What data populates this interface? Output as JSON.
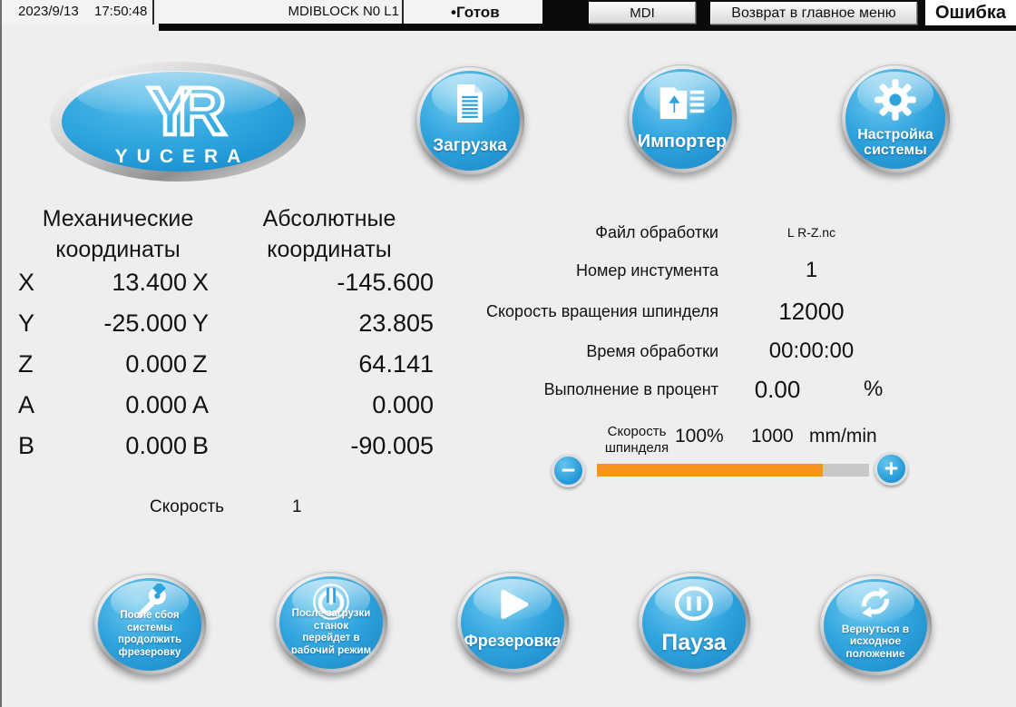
{
  "topbar": {
    "date": "2023/9/13",
    "time": "17:50:48",
    "program_block": "MDIBLOCK N0 L1",
    "status": "•Готов",
    "mode_button": "MDI",
    "return_button": "Возврат в главное меню",
    "error_label": "Ошибка"
  },
  "logo": {
    "brand": "YUCERA",
    "monogram": "YR"
  },
  "top_buttons": {
    "load": {
      "label": "Загрузка"
    },
    "import": {
      "label": "Импортер"
    },
    "settings": {
      "line1": "Настройка",
      "line2": "системы"
    }
  },
  "coordinates": {
    "mechanical": {
      "title1": "Механические",
      "title2": "координаты",
      "rows": [
        {
          "axis": "X",
          "value": "13.400"
        },
        {
          "axis": "Y",
          "value": "-25.000"
        },
        {
          "axis": "Z",
          "value": "0.000"
        },
        {
          "axis": "A",
          "value": "0.000"
        },
        {
          "axis": "B",
          "value": "0.000"
        }
      ]
    },
    "absolute": {
      "title1": "Абсолютные",
      "title2": "координаты",
      "rows": [
        {
          "axis": "X",
          "value": "-145.600"
        },
        {
          "axis": "Y",
          "value": "23.805"
        },
        {
          "axis": "Z",
          "value": "64.141"
        },
        {
          "axis": "A",
          "value": "0.000"
        },
        {
          "axis": "B",
          "value": "-90.005"
        }
      ]
    }
  },
  "feed": {
    "label": "Скорость",
    "value": "1"
  },
  "info_rows": [
    {
      "label": "Файл обработки",
      "value": "L R-Z.nc"
    },
    {
      "label": "Номер инстумента",
      "value": "1"
    },
    {
      "label": "Скорость вращения шпинделя",
      "value": "12000"
    },
    {
      "label": "Время обработки",
      "value": "00:00:00"
    },
    {
      "label": "Выполнение в процент",
      "value": "0.00",
      "unit": "%"
    }
  ],
  "spindle": {
    "label1": "Скорость",
    "label2": "шпинделя",
    "override": "100%",
    "feedrate": "1000",
    "unit": "mm/min",
    "minus": "−",
    "plus": "+",
    "fill_percent": 83
  },
  "bottom_buttons": {
    "resume_after_failure": {
      "line1": "После сбоя системы",
      "line2": "продолжить",
      "line3": "фрезеровку"
    },
    "work_mode_after_load": {
      "line1": "После загрузки станок",
      "line2": "перейдет в",
      "line3": "рабочий режим"
    },
    "milling": {
      "label": "Фрезеровка"
    },
    "pause": {
      "label": "Пауза"
    },
    "return_home": {
      "line1": "Вернуться в",
      "line2": "исходное",
      "line3": "положение"
    }
  },
  "colors": {
    "accent_blue": "#2fa3dd",
    "orange": "#f7941e",
    "track_gray": "#c8c8c8"
  }
}
